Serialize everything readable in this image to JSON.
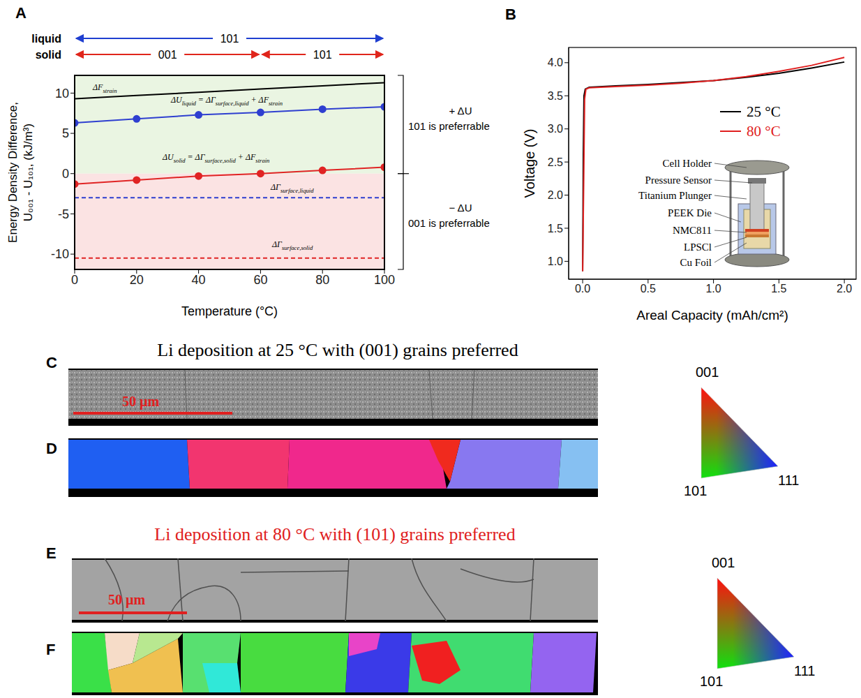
{
  "chart_data": [
    {
      "panel": "A",
      "type": "line",
      "x_label": "Temperature (°C)",
      "y_label": [
        "Energy Density Difference,",
        "U₀₀₁ - U₁₀₁, (kJ/m³)"
      ],
      "xlim": [
        0,
        100
      ],
      "xticks": [
        0,
        20,
        40,
        60,
        80,
        100
      ],
      "ylim": [
        -11.9,
        12.2
      ],
      "yticks": [
        -10,
        -5,
        0,
        5,
        10
      ],
      "x": [
        0,
        20,
        40,
        60,
        80,
        100
      ],
      "series": [
        {
          "label": [
            [
              "ΔF",
              "strain"
            ]
          ],
          "color": "#000000",
          "marker": "none",
          "line_style": "solid",
          "values": [
            9.3,
            9.7,
            10.1,
            10.5,
            10.9,
            11.3
          ]
        },
        {
          "label": [
            [
              "ΔU",
              "liquid"
            ],
            [
              " = ΔΓ",
              "surface,liquid"
            ],
            [
              " + ΔF",
              "strain"
            ]
          ],
          "color": "#2f3fd0",
          "marker": "circle",
          "line_style": "solid",
          "values": [
            6.3,
            6.8,
            7.3,
            7.6,
            8.0,
            8.3
          ]
        },
        {
          "label": [
            [
              "ΔU",
              "solid"
            ],
            [
              " = ΔΓ",
              "surface,solid"
            ],
            [
              " + ΔF",
              "strain"
            ]
          ],
          "color": "#e02424",
          "marker": "circle",
          "line_style": "solid",
          "values": [
            -1.3,
            -0.8,
            -0.3,
            0.0,
            0.4,
            0.8
          ]
        },
        {
          "label": [
            [
              "ΔΓ",
              "surface,liquid"
            ]
          ],
          "color": "#2f3fd0",
          "marker": "none",
          "line_style": "dashed",
          "values": [
            -3.0,
            -3.0,
            -3.0,
            -3.0,
            -3.0,
            -3.0
          ]
        },
        {
          "label": [
            [
              "ΔΓ",
              "surface,solid"
            ]
          ],
          "color": "#e02424",
          "marker": "none",
          "line_style": "dashed",
          "values": [
            -10.5,
            -10.5,
            -10.5,
            -10.5,
            -10.5,
            -10.5
          ]
        }
      ],
      "regions": [
        {
          "ylim": [
            0,
            12.2
          ],
          "color": "#eaf5e2",
          "annotation": [
            "+ ΔU",
            "101 is preferrable"
          ]
        },
        {
          "ylim": [
            -11.9,
            0
          ],
          "color": "#fbe3e3",
          "annotation": [
            "− ΔU",
            "001 is preferrable"
          ]
        }
      ],
      "phases": [
        {
          "name": "liquid",
          "color": "#1f3fd0",
          "segments": [
            {
              "label": "101",
              "xlim": [
                0,
                100
              ]
            }
          ]
        },
        {
          "name": "solid",
          "color": "#e0251b",
          "segments": [
            {
              "label": "001",
              "xlim": [
                0,
                60
              ]
            },
            {
              "label": "101",
              "xlim": [
                60,
                100
              ]
            }
          ]
        }
      ]
    },
    {
      "panel": "B",
      "type": "line",
      "x_label": "Areal Capacity (mAh/cm²)",
      "y_label": "Voltage (V)",
      "xlim": [
        -0.107,
        2.09
      ],
      "xticks": [
        {
          "value": 0,
          "label": "0.0"
        },
        {
          "value": 0.5,
          "label": "0.5"
        },
        {
          "value": 1,
          "label": "1.0"
        },
        {
          "value": 1.5,
          "label": "1.5"
        },
        {
          "value": 2,
          "label": "2.0"
        }
      ],
      "ylim": [
        0.73,
        4.23
      ],
      "yticks": [
        {
          "value": 1,
          "label": "1.0"
        },
        {
          "value": 1.5,
          "label": "1.5"
        },
        {
          "value": 2,
          "label": "2.0"
        },
        {
          "value": 2.5,
          "label": "2.5"
        },
        {
          "value": 3,
          "label": "3.0"
        },
        {
          "value": 3.5,
          "label": "3.5"
        },
        {
          "value": 4,
          "label": "4.0"
        }
      ],
      "legend": "right",
      "series": [
        {
          "name": "25 °C",
          "color": "#000000",
          "x": [
            0,
            0.005,
            0.01,
            0.02,
            0.05,
            0.25,
            0.5,
            0.75,
            1.0,
            1.25,
            1.5,
            1.75,
            2.0
          ],
          "values": [
            0.85,
            2.6,
            3.5,
            3.6,
            3.63,
            3.65,
            3.67,
            3.7,
            3.73,
            3.78,
            3.84,
            3.92,
            4.01
          ]
        },
        {
          "name": "80 °C",
          "color": "#e02020",
          "x": [
            0,
            0.008,
            0.015,
            0.025,
            0.05,
            0.25,
            0.5,
            0.75,
            1.0,
            1.25,
            1.5,
            1.75,
            2.0
          ],
          "values": [
            0.85,
            2.2,
            3.45,
            3.6,
            3.62,
            3.64,
            3.66,
            3.69,
            3.73,
            3.79,
            3.87,
            3.96,
            4.08
          ]
        }
      ],
      "inset": [
        "Cell Holder",
        "Pressure Sensor",
        "Titanium Plunger",
        "PEEK Die",
        "NMC811",
        "LPSCl",
        "Cu Foil"
      ]
    }
  ],
  "micrographs": [
    {
      "title": "Li deposition at 25 °C with (001) grains preferred",
      "color": "#000000",
      "panels": [
        "C",
        "D"
      ],
      "scale_bar": "50 µm",
      "ipf_labels": [
        "001",
        "101",
        "111"
      ]
    },
    {
      "title": "Li deposition at 80 °C with (101) grains preferred",
      "color": "#e02020",
      "panels": [
        "E",
        "F"
      ],
      "scale_bar": "50 µm",
      "ipf_labels": [
        "001",
        "101",
        "111"
      ]
    }
  ]
}
